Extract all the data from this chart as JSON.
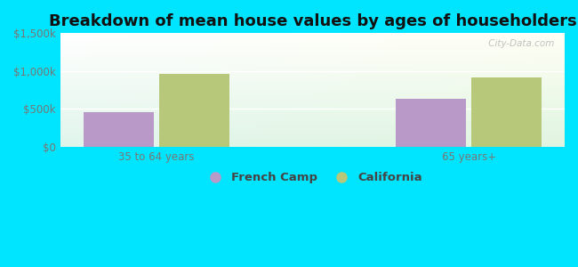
{
  "title": "Breakdown of mean house values by ages of householders",
  "categories": [
    "35 to 64 years",
    "65 years+"
  ],
  "series": {
    "French Camp": [
      450000,
      630000
    ],
    "California": [
      960000,
      920000
    ]
  },
  "bar_colors": {
    "French Camp": "#b899c8",
    "California": "#b8c87a"
  },
  "ylim": [
    0,
    1500000
  ],
  "yticks": [
    0,
    500000,
    1000000,
    1500000
  ],
  "ytick_labels": [
    "$0",
    "$500k",
    "$1,000k",
    "$1,500k"
  ],
  "background_color": "#00e5ff",
  "bar_width": 0.28,
  "title_fontsize": 13,
  "tick_fontsize": 8.5,
  "legend_fontsize": 9.5,
  "watermark": " City-Data.com"
}
